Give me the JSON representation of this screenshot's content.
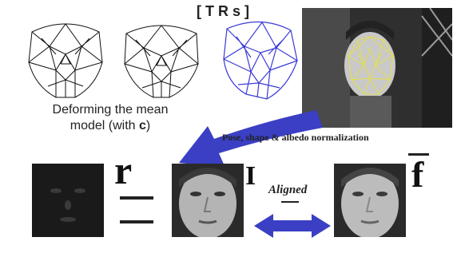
{
  "header": {
    "title": "[TRs]"
  },
  "caption": {
    "line1": "Deforming the mean",
    "line2_prefix": "model (with ",
    "line2_symbol": "c",
    "line2_suffix": ")"
  },
  "normalization": {
    "label": "Pose, shape & albedo normalization"
  },
  "equation": {
    "residual_symbol": "r",
    "aligned_symbol": "I",
    "aligned_label": "Aligned",
    "mean_symbol": "f"
  },
  "colors": {
    "arrow_blue": "#3a3fc4",
    "mesh_blue": "#3b3bd6",
    "landmark_yellow": "#e3e04a"
  }
}
